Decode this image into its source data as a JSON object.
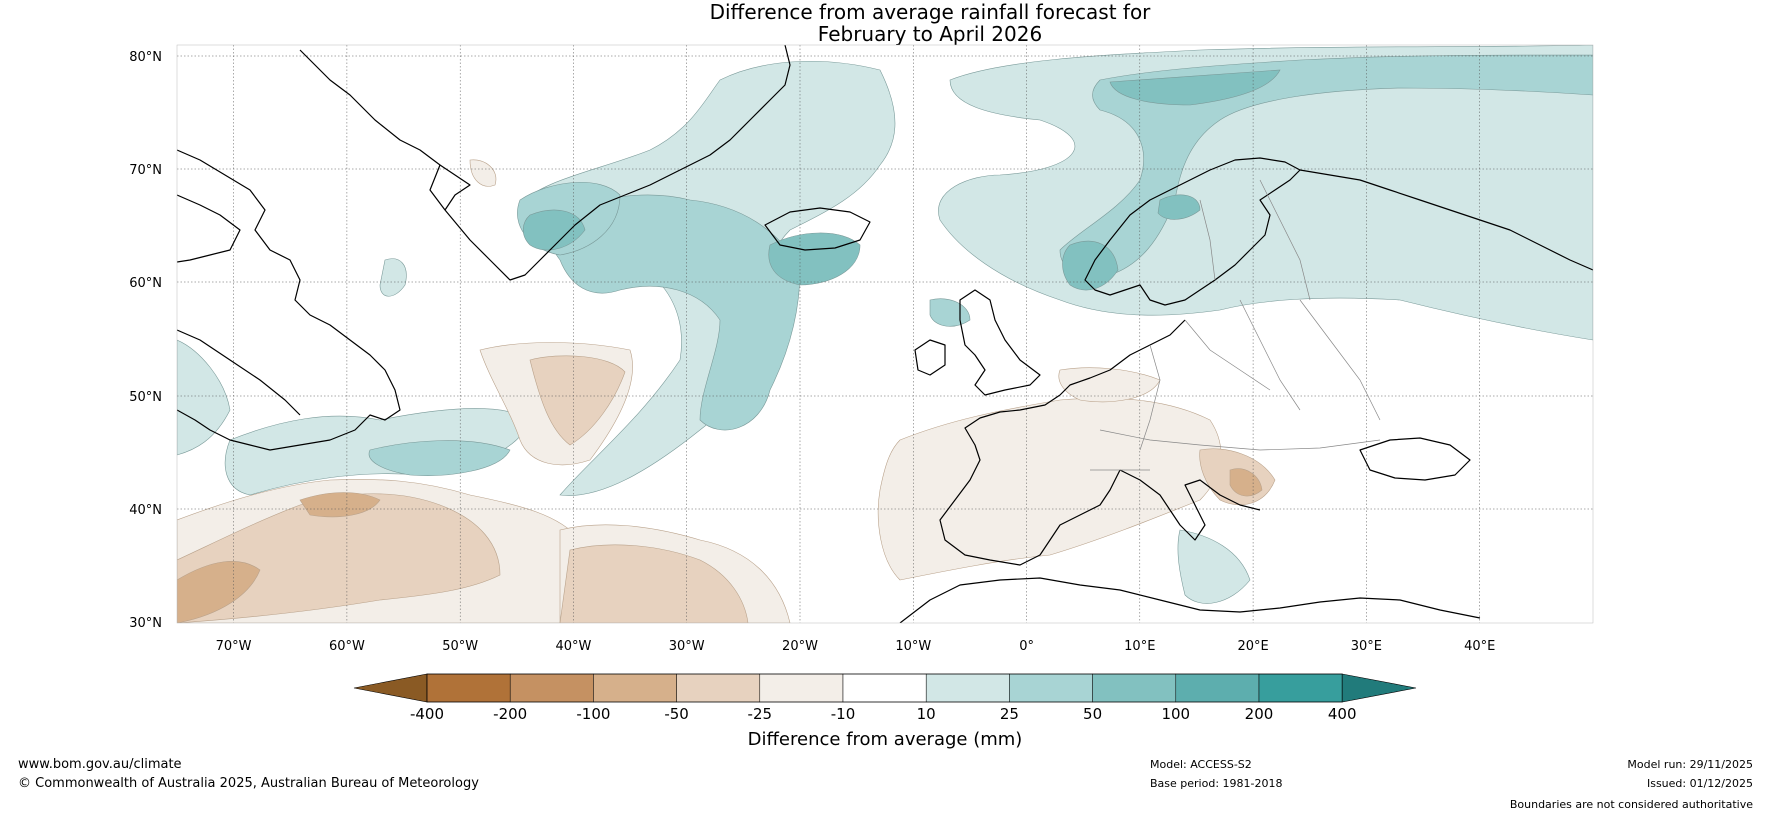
{
  "header": {
    "title_line1": "Difference from average rainfall forecast for",
    "title_line2": "February to April 2026"
  },
  "map": {
    "lat_labels": [
      "80°N",
      "70°N",
      "60°N",
      "50°N",
      "40°N",
      "30°N"
    ],
    "lon_labels": [
      "70°W",
      "60°W",
      "50°W",
      "40°W",
      "30°W",
      "20°W",
      "10°W",
      "0°",
      "10°E",
      "20°E",
      "30°E",
      "40°E"
    ],
    "lat_values": [
      80,
      70,
      60,
      50,
      40,
      30
    ],
    "lon_values": [
      -70,
      -60,
      -50,
      -40,
      -30,
      -20,
      -10,
      0,
      10,
      20,
      30,
      40
    ],
    "lon_range": [
      -75,
      50
    ],
    "lat_range": [
      30,
      81
    ]
  },
  "colorbar": {
    "label": "Difference from average (mm)",
    "ticks": [
      "-400",
      "-200",
      "-100",
      "-50",
      "-25",
      "-10",
      "10",
      "25",
      "50",
      "100",
      "200",
      "400"
    ],
    "colors": [
      "#8a5a24",
      "#b07238",
      "#c59162",
      "#d6b08b",
      "#e7d2bf",
      "#f3eee8",
      "#ffffff",
      "#d2e7e6",
      "#a8d4d4",
      "#82c1c0",
      "#5daeae",
      "#379e9d",
      "#217b7b"
    ]
  },
  "footer": {
    "url": "www.bom.gov.au/climate",
    "copyright": "© Commonwealth of Australia 2025, Australian Bureau of Meteorology",
    "model": "Model: ACCESS-S2",
    "base_period": "Base period: 1981-2018",
    "model_run": "Model run: 29/11/2025",
    "issued": "Issued: 01/12/2025",
    "disclaimer": "Boundaries are not considered authoritative"
  }
}
